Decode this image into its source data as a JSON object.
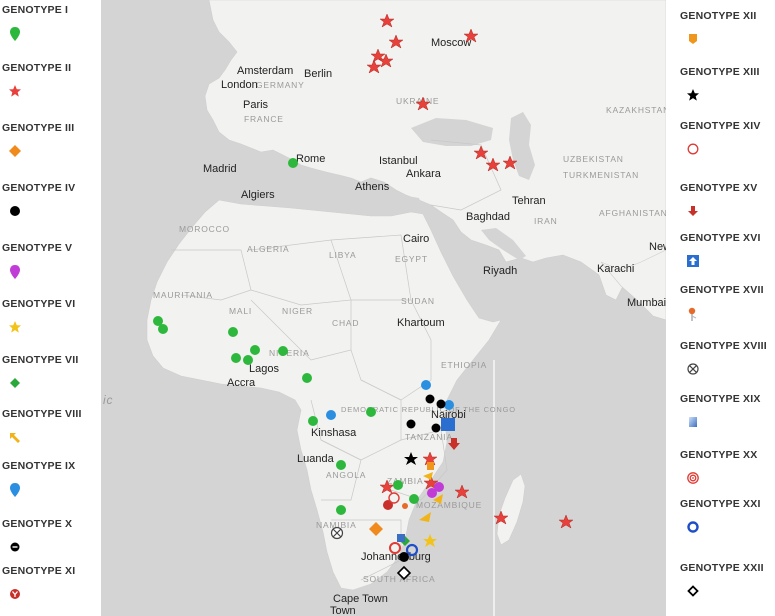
{
  "legend": {
    "left": [
      {
        "label": "GENOTYPE I",
        "icon": "green-pin-icon",
        "color": "#2db83d"
      },
      {
        "label": "GENOTYPE II",
        "icon": "red-star-icon",
        "color": "#e8403a"
      },
      {
        "label": "GENOTYPE III",
        "icon": "orange-diamond-icon",
        "color": "#f08a1c"
      },
      {
        "label": "GENOTYPE IV",
        "icon": "black-circle-icon",
        "color": "#000000"
      },
      {
        "label": "GENOTYPE V",
        "icon": "magenta-pin-icon",
        "color": "#c13bd6"
      },
      {
        "label": "GENOTYPE VI",
        "icon": "yellow-star-icon",
        "color": "#f2c318"
      },
      {
        "label": "GENOTYPE VII",
        "icon": "green-diamond-icon",
        "color": "#2aa83a"
      },
      {
        "label": "GENOTYPE VIII",
        "icon": "yellow-arrow-icon",
        "color": "#f0b418"
      },
      {
        "label": "GENOTYPE IX",
        "icon": "blue-pin-icon",
        "color": "#2a8fe0"
      },
      {
        "label": "GENOTYPE X",
        "icon": "black-minus-circle-icon",
        "color": "#000000"
      },
      {
        "label": "GENOTYPE XI",
        "icon": "red-y-circle-icon",
        "color": "#c8302a"
      }
    ],
    "right": [
      {
        "label": "GENOTYPE XII",
        "icon": "orange-tag-icon",
        "color": "#f0961c"
      },
      {
        "label": "GENOTYPE XIII",
        "icon": "black-star-icon",
        "color": "#000000"
      },
      {
        "label": "GENOTYPE XIV",
        "icon": "red-ring-icon",
        "color": "#e03a34"
      },
      {
        "label": "GENOTYPE XV",
        "icon": "red-down-arrow-icon",
        "color": "#c8302a"
      },
      {
        "label": "GENOTYPE XVI",
        "icon": "blue-up-square-icon",
        "color": "#2a6fd0"
      },
      {
        "label": "GENOTYPE XVII",
        "icon": "orange-flag-pin-icon",
        "color": "#e66a2a"
      },
      {
        "label": "GENOTYPE XVIII",
        "icon": "crossed-circle-icon",
        "color": "#444444"
      },
      {
        "label": "GENOTYPE XIX",
        "icon": "blue-gradient-square-icon",
        "color": "#3b6fc4"
      },
      {
        "label": "GENOTYPE XX",
        "icon": "red-target-icon",
        "color": "#e03a34"
      },
      {
        "label": "GENOTYPE XXI",
        "icon": "blue-ring-icon",
        "color": "#1f4fc8"
      },
      {
        "label": "GENOTYPE XXII",
        "icon": "black-diamond-outline-icon",
        "color": "#000000"
      }
    ]
  },
  "map": {
    "cities": [
      "Moscow",
      "Amsterdam",
      "Berlin",
      "London",
      "Paris",
      "Rome",
      "Madrid",
      "Istanbul",
      "Ankara",
      "Algiers",
      "Athens",
      "Tehran",
      "Baghdad",
      "Cairo",
      "Riyadh",
      "Karachi",
      "Mumbai",
      "Khartoum",
      "Lagos",
      "Accra",
      "Nairobi",
      "Kinshasa",
      "Luanda",
      "Johannesburg",
      "Cape Town",
      "New"
    ],
    "countries": [
      "GERMANY",
      "FRANCE",
      "UKRAINE",
      "KAZAKHSTAN",
      "UZBEKISTAN",
      "TURKMENISTAN",
      "IRAN",
      "AFGHANISTAN",
      "MOROCCO",
      "ALGERIA",
      "LIBYA",
      "EGYPT",
      "MAURITANIA",
      "MALI",
      "NIGER",
      "CHAD",
      "SUDAN",
      "ETHIOPIA",
      "NIGERIA",
      "DEMOCRATIC REPUBLIC OF THE CONGO",
      "TANZANIA",
      "ANGOLA",
      "NAMIBIA",
      "MOZAMBIQUE",
      "SOUTH AFRICA",
      "ZAMBIA"
    ],
    "ocean_label": "ic"
  },
  "colors": {
    "land": "#f2f2f0",
    "water": "#d4d4d4",
    "border": "#c8c8c8"
  }
}
